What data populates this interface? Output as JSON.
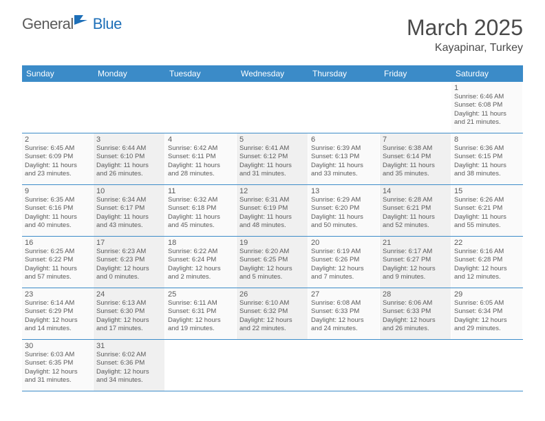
{
  "brand": {
    "part1": "General",
    "part2": "Blue"
  },
  "title": "March 2025",
  "location": "Kayapinar, Turkey",
  "colors": {
    "header_bg": "#3b8bc8",
    "header_text": "#ffffff",
    "cell_bg_a": "#fafafa",
    "cell_bg_b": "#f0f0f0",
    "border": "#3b8bc8",
    "logo_blue": "#1d6fb8",
    "text": "#4a4a4a"
  },
  "dayHeaders": [
    "Sunday",
    "Monday",
    "Tuesday",
    "Wednesday",
    "Thursday",
    "Friday",
    "Saturday"
  ],
  "weeks": [
    [
      null,
      null,
      null,
      null,
      null,
      null,
      {
        "n": "1",
        "sr": "6:46 AM",
        "ss": "6:08 PM",
        "dh": "11",
        "dm": "21"
      }
    ],
    [
      {
        "n": "2",
        "sr": "6:45 AM",
        "ss": "6:09 PM",
        "dh": "11",
        "dm": "23"
      },
      {
        "n": "3",
        "sr": "6:44 AM",
        "ss": "6:10 PM",
        "dh": "11",
        "dm": "26"
      },
      {
        "n": "4",
        "sr": "6:42 AM",
        "ss": "6:11 PM",
        "dh": "11",
        "dm": "28"
      },
      {
        "n": "5",
        "sr": "6:41 AM",
        "ss": "6:12 PM",
        "dh": "11",
        "dm": "31"
      },
      {
        "n": "6",
        "sr": "6:39 AM",
        "ss": "6:13 PM",
        "dh": "11",
        "dm": "33"
      },
      {
        "n": "7",
        "sr": "6:38 AM",
        "ss": "6:14 PM",
        "dh": "11",
        "dm": "35"
      },
      {
        "n": "8",
        "sr": "6:36 AM",
        "ss": "6:15 PM",
        "dh": "11",
        "dm": "38"
      }
    ],
    [
      {
        "n": "9",
        "sr": "6:35 AM",
        "ss": "6:16 PM",
        "dh": "11",
        "dm": "40"
      },
      {
        "n": "10",
        "sr": "6:34 AM",
        "ss": "6:17 PM",
        "dh": "11",
        "dm": "43"
      },
      {
        "n": "11",
        "sr": "6:32 AM",
        "ss": "6:18 PM",
        "dh": "11",
        "dm": "45"
      },
      {
        "n": "12",
        "sr": "6:31 AM",
        "ss": "6:19 PM",
        "dh": "11",
        "dm": "48"
      },
      {
        "n": "13",
        "sr": "6:29 AM",
        "ss": "6:20 PM",
        "dh": "11",
        "dm": "50"
      },
      {
        "n": "14",
        "sr": "6:28 AM",
        "ss": "6:21 PM",
        "dh": "11",
        "dm": "52"
      },
      {
        "n": "15",
        "sr": "6:26 AM",
        "ss": "6:21 PM",
        "dh": "11",
        "dm": "55"
      }
    ],
    [
      {
        "n": "16",
        "sr": "6:25 AM",
        "ss": "6:22 PM",
        "dh": "11",
        "dm": "57"
      },
      {
        "n": "17",
        "sr": "6:23 AM",
        "ss": "6:23 PM",
        "dh": "12",
        "dm": "0"
      },
      {
        "n": "18",
        "sr": "6:22 AM",
        "ss": "6:24 PM",
        "dh": "12",
        "dm": "2"
      },
      {
        "n": "19",
        "sr": "6:20 AM",
        "ss": "6:25 PM",
        "dh": "12",
        "dm": "5"
      },
      {
        "n": "20",
        "sr": "6:19 AM",
        "ss": "6:26 PM",
        "dh": "12",
        "dm": "7"
      },
      {
        "n": "21",
        "sr": "6:17 AM",
        "ss": "6:27 PM",
        "dh": "12",
        "dm": "9"
      },
      {
        "n": "22",
        "sr": "6:16 AM",
        "ss": "6:28 PM",
        "dh": "12",
        "dm": "12"
      }
    ],
    [
      {
        "n": "23",
        "sr": "6:14 AM",
        "ss": "6:29 PM",
        "dh": "12",
        "dm": "14"
      },
      {
        "n": "24",
        "sr": "6:13 AM",
        "ss": "6:30 PM",
        "dh": "12",
        "dm": "17"
      },
      {
        "n": "25",
        "sr": "6:11 AM",
        "ss": "6:31 PM",
        "dh": "12",
        "dm": "19"
      },
      {
        "n": "26",
        "sr": "6:10 AM",
        "ss": "6:32 PM",
        "dh": "12",
        "dm": "22"
      },
      {
        "n": "27",
        "sr": "6:08 AM",
        "ss": "6:33 PM",
        "dh": "12",
        "dm": "24"
      },
      {
        "n": "28",
        "sr": "6:06 AM",
        "ss": "6:33 PM",
        "dh": "12",
        "dm": "26"
      },
      {
        "n": "29",
        "sr": "6:05 AM",
        "ss": "6:34 PM",
        "dh": "12",
        "dm": "29"
      }
    ],
    [
      {
        "n": "30",
        "sr": "6:03 AM",
        "ss": "6:35 PM",
        "dh": "12",
        "dm": "31"
      },
      {
        "n": "31",
        "sr": "6:02 AM",
        "ss": "6:36 PM",
        "dh": "12",
        "dm": "34"
      },
      null,
      null,
      null,
      null,
      null
    ]
  ],
  "labels": {
    "sunrise": "Sunrise:",
    "sunset": "Sunset:",
    "daylight1": "Daylight:",
    "hours": "hours",
    "and": "and",
    "minutes": "minutes."
  }
}
